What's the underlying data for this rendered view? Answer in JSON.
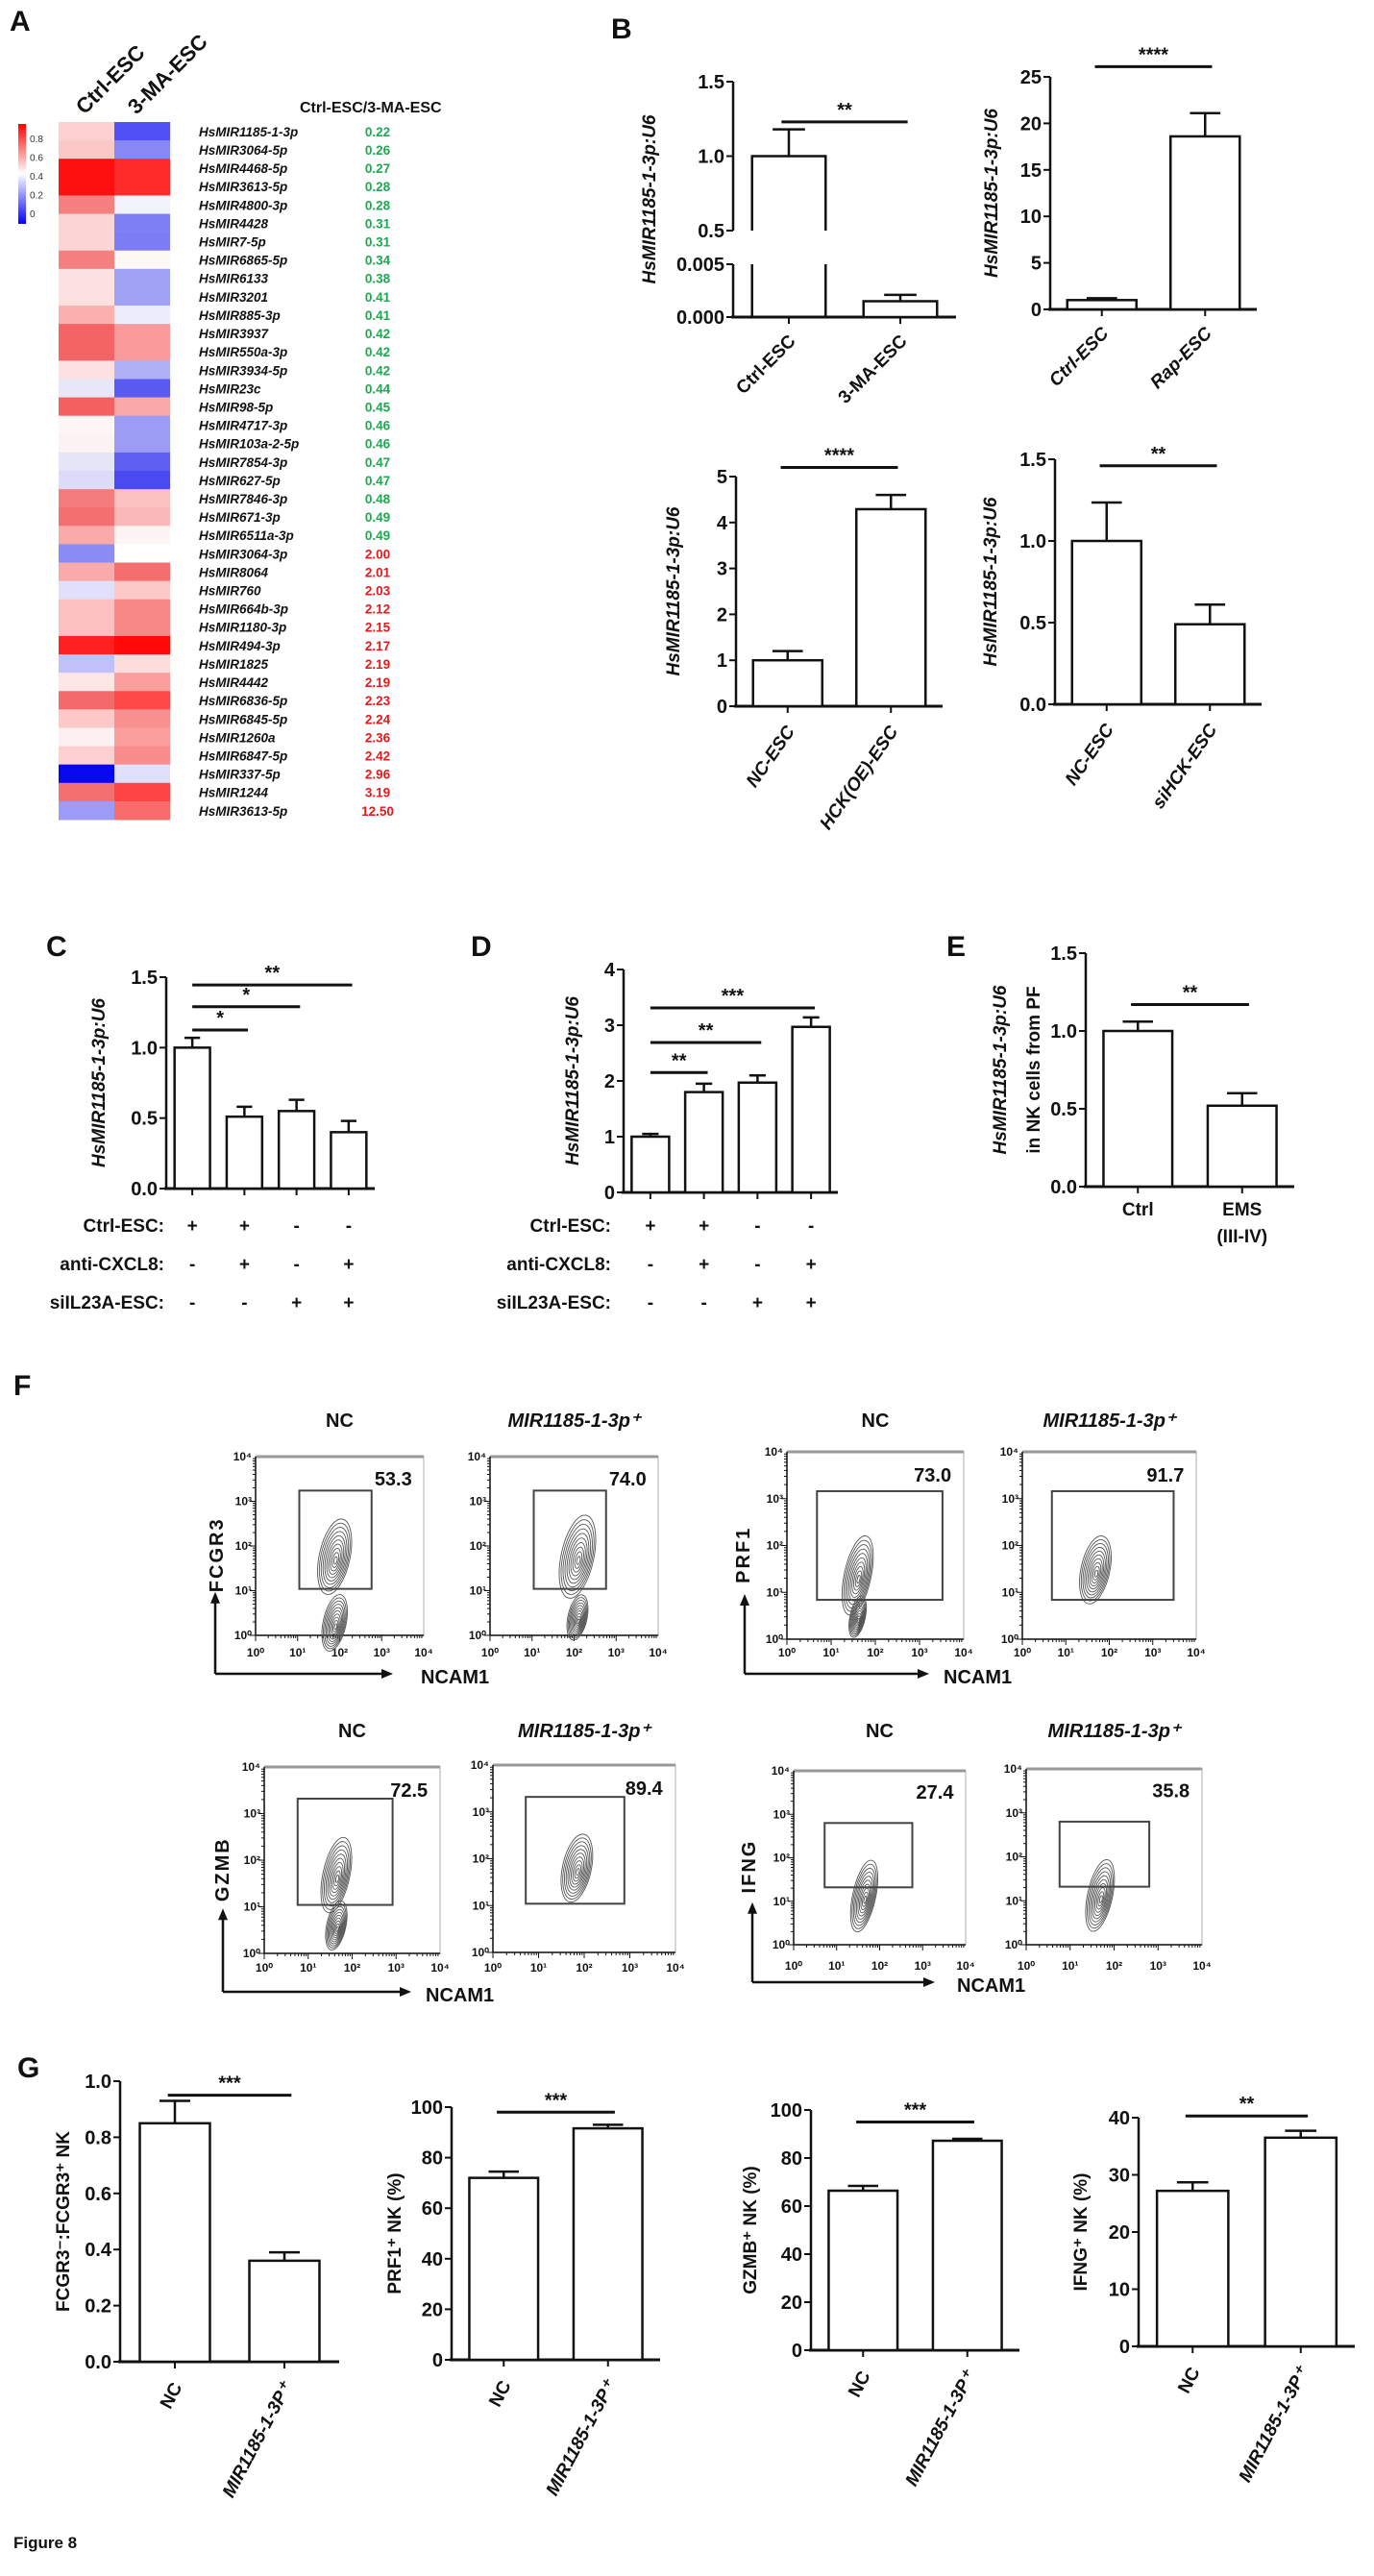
{
  "figure_label": "Figure 8",
  "panel_labels": {
    "A": "A",
    "B": "B",
    "C": "C",
    "D": "D",
    "E": "E",
    "F": "F",
    "G": "G"
  },
  "colors": {
    "down": "#1ea84f",
    "up": "#e41a1c",
    "bar_fill": "#ffffff",
    "line": "#111111",
    "gate": "#444444",
    "contour": "#555555"
  },
  "heatmap": {
    "columns": [
      "Ctrl-ESC",
      "3-MA-ESC"
    ],
    "ratio_header": "Ctrl-ESC/3-MA-ESC",
    "colorbar_ticks": [
      "0.8",
      "0.6",
      "0.4",
      "0.2",
      "0"
    ],
    "rows": [
      {
        "name": "HsMIR1185-1-3p",
        "ratio": "0.22",
        "dir": "down",
        "colors": [
          "#fcd0d0",
          "#5050f5"
        ]
      },
      {
        "name": "HsMIR3064-5p",
        "ratio": "0.26",
        "dir": "down",
        "colors": [
          "#fbc8c8",
          "#8888f5"
        ]
      },
      {
        "name": "HsMIR4468-5p",
        "ratio": "0.27",
        "dir": "down",
        "colors": [
          "#ff1010",
          "#ff2a2a"
        ]
      },
      {
        "name": "HsMIR3613-5p",
        "ratio": "0.28",
        "dir": "down",
        "colors": [
          "#ff1010",
          "#ff2a2a"
        ]
      },
      {
        "name": "HsMIR4800-3p",
        "ratio": "0.28",
        "dir": "down",
        "colors": [
          "#f48080",
          "#f2f2fa"
        ]
      },
      {
        "name": "HsMIR4428",
        "ratio": "0.31",
        "dir": "down",
        "colors": [
          "#fcd6d6",
          "#8080f5"
        ]
      },
      {
        "name": "HsMIR7-5p",
        "ratio": "0.31",
        "dir": "down",
        "colors": [
          "#fcd6d6",
          "#7c7cf5"
        ]
      },
      {
        "name": "HsMIR6865-5p",
        "ratio": "0.34",
        "dir": "down",
        "colors": [
          "#f48080",
          "#fdf8f3"
        ]
      },
      {
        "name": "HsMIR6133",
        "ratio": "0.38",
        "dir": "down",
        "colors": [
          "#fde0e0",
          "#a0a0f5"
        ]
      },
      {
        "name": "HsMIR3201",
        "ratio": "0.41",
        "dir": "down",
        "colors": [
          "#fde0e0",
          "#a0a0f5"
        ]
      },
      {
        "name": "HsMIR885-3p",
        "ratio": "0.41",
        "dir": "down",
        "colors": [
          "#fbb0b0",
          "#ececfa"
        ]
      },
      {
        "name": "HsMIR3937",
        "ratio": "0.42",
        "dir": "down",
        "colors": [
          "#f46464",
          "#fa9a9a"
        ]
      },
      {
        "name": "HsMIR550a-3p",
        "ratio": "0.42",
        "dir": "down",
        "colors": [
          "#f46464",
          "#fa9a9a"
        ]
      },
      {
        "name": "HsMIR3934-5p",
        "ratio": "0.42",
        "dir": "down",
        "colors": [
          "#fde0e0",
          "#b0b0f5"
        ]
      },
      {
        "name": "HsMIR23c",
        "ratio": "0.44",
        "dir": "down",
        "colors": [
          "#e6e8fa",
          "#5a5af0"
        ]
      },
      {
        "name": "HsMIR98-5p",
        "ratio": "0.45",
        "dir": "down",
        "colors": [
          "#f46060",
          "#fba8a8"
        ]
      },
      {
        "name": "HsMIR4717-3p",
        "ratio": "0.46",
        "dir": "down",
        "colors": [
          "#fdf6f4",
          "#9c9cf5"
        ]
      },
      {
        "name": "HsMIR103a-2-5p",
        "ratio": "0.46",
        "dir": "down",
        "colors": [
          "#fdf2f2",
          "#9c9cf5"
        ]
      },
      {
        "name": "HsMIR7854-3p",
        "ratio": "0.47",
        "dir": "down",
        "colors": [
          "#e4e6f8",
          "#5e5ef0"
        ]
      },
      {
        "name": "HsMIR627-5p",
        "ratio": "0.47",
        "dir": "down",
        "colors": [
          "#dcdcf8",
          "#4a4af0"
        ]
      },
      {
        "name": "HsMIR7846-3p",
        "ratio": "0.48",
        "dir": "down",
        "colors": [
          "#f47c7c",
          "#fbc0c0"
        ]
      },
      {
        "name": "HsMIR671-3p",
        "ratio": "0.49",
        "dir": "down",
        "colors": [
          "#f47070",
          "#fbb8b8"
        ]
      },
      {
        "name": "HsMIR6511a-3p",
        "ratio": "0.49",
        "dir": "down",
        "colors": [
          "#fbaaaa",
          "#fdf4f4"
        ]
      },
      {
        "name": "HsMIR3064-3p",
        "ratio": "2.00",
        "dir": "up",
        "colors": [
          "#8c8cf5",
          "#ffffff"
        ]
      },
      {
        "name": "HsMIR8064",
        "ratio": "2.01",
        "dir": "up",
        "colors": [
          "#fbaaaa",
          "#f46e6e"
        ]
      },
      {
        "name": "HsMIR760",
        "ratio": "2.03",
        "dir": "up",
        "colors": [
          "#e0e0fa",
          "#fcc8c8"
        ]
      },
      {
        "name": "HsMIR664b-3p",
        "ratio": "2.12",
        "dir": "up",
        "colors": [
          "#fcc0c0",
          "#f88888"
        ]
      },
      {
        "name": "HsMIR1180-3p",
        "ratio": "2.15",
        "dir": "up",
        "colors": [
          "#fcc0c0",
          "#f88888"
        ]
      },
      {
        "name": "HsMIR494-3p",
        "ratio": "2.17",
        "dir": "up",
        "colors": [
          "#ff2020",
          "#ff0808"
        ]
      },
      {
        "name": "HsMIR1825",
        "ratio": "2.19",
        "dir": "up",
        "colors": [
          "#c0c0fa",
          "#fddcdc"
        ]
      },
      {
        "name": "HsMIR4442",
        "ratio": "2.19",
        "dir": "up",
        "colors": [
          "#fde6e6",
          "#fa9e9e"
        ]
      },
      {
        "name": "HsMIR6836-5p",
        "ratio": "2.23",
        "dir": "up",
        "colors": [
          "#f46a6a",
          "#ff4848"
        ]
      },
      {
        "name": "HsMIR6845-5p",
        "ratio": "2.24",
        "dir": "up",
        "colors": [
          "#fcc8c8",
          "#f89090"
        ]
      },
      {
        "name": "HsMIR1260a",
        "ratio": "2.36",
        "dir": "up",
        "colors": [
          "#fdf0f0",
          "#fa9e9e"
        ]
      },
      {
        "name": "HsMIR6847-5p",
        "ratio": "2.42",
        "dir": "up",
        "colors": [
          "#fcd0d0",
          "#f88c8c"
        ]
      },
      {
        "name": "HsMIR337-5p",
        "ratio": "2.96",
        "dir": "up",
        "colors": [
          "#0808f0",
          "#e0e0fa"
        ]
      },
      {
        "name": "HsMIR1244",
        "ratio": "3.19",
        "dir": "up",
        "colors": [
          "#f47070",
          "#ff4444"
        ]
      },
      {
        "name": "HsMIR3613-5p",
        "ratio": "12.50",
        "dir": "up",
        "colors": [
          "#9c9cf8",
          "#f86c6c"
        ]
      }
    ]
  },
  "chart_data": [
    {
      "id": "B1",
      "panel": "B",
      "type": "bar",
      "categories": [
        "Ctrl-ESC",
        "3-MA-ESC"
      ],
      "values": [
        1.0,
        0.0015
      ],
      "error_tops": [
        1.18,
        0.0021
      ],
      "ylabel": "HsMIR1185-1-3p:U6",
      "ylim": [
        0,
        1.5
      ],
      "axis_break": [
        0.005,
        0.5
      ],
      "yticks": [
        {
          "v": 0,
          "label": "0.000"
        },
        {
          "v": 0.005,
          "label": "0.005"
        },
        {
          "v": 0.5,
          "label": "0.5"
        },
        {
          "v": 1.0,
          "label": "1.0"
        },
        {
          "v": 1.5,
          "label": "1.5"
        }
      ],
      "significance": [
        {
          "from": 0,
          "to": 1,
          "label": "**",
          "level": 1.23
        }
      ]
    },
    {
      "id": "B2",
      "panel": "B",
      "type": "bar",
      "categories": [
        "Ctrl-ESC",
        "Rap-ESC"
      ],
      "values": [
        1.0,
        18.6
      ],
      "error_tops": [
        1.2,
        21.1
      ],
      "ylabel": "HsMIR1185-1-3p:U6",
      "ylim": [
        0,
        25
      ],
      "yticks": [
        {
          "v": 0,
          "label": "0"
        },
        {
          "v": 5,
          "label": "5"
        },
        {
          "v": 10,
          "label": "10"
        },
        {
          "v": 15,
          "label": "15"
        },
        {
          "v": 20,
          "label": "20"
        },
        {
          "v": 25,
          "label": "25"
        }
      ],
      "significance": [
        {
          "from": 0,
          "to": 1,
          "label": "****",
          "level": 26.1
        }
      ]
    },
    {
      "id": "B3",
      "panel": "B",
      "type": "bar",
      "categories": [
        "NC-ESC",
        "HCK(OE)-ESC"
      ],
      "values": [
        1.0,
        4.29
      ],
      "error_tops": [
        1.2,
        4.6
      ],
      "ylabel": "HsMIR1185-1-3p:U6",
      "ylim": [
        0,
        5
      ],
      "yticks": [
        {
          "v": 0,
          "label": "0"
        },
        {
          "v": 1,
          "label": "1"
        },
        {
          "v": 2,
          "label": "2"
        },
        {
          "v": 3,
          "label": "3"
        },
        {
          "v": 4,
          "label": "4"
        },
        {
          "v": 5,
          "label": "5"
        }
      ],
      "significance": [
        {
          "from": 0,
          "to": 1,
          "label": "****",
          "level": 5.2
        }
      ]
    },
    {
      "id": "B4",
      "panel": "B",
      "type": "bar",
      "categories": [
        "NC-ESC",
        "siHCK-ESC"
      ],
      "values": [
        1.0,
        0.49
      ],
      "error_tops": [
        1.235,
        0.61
      ],
      "ylabel": "HsMIR1185-1-3p:U6",
      "ylim": [
        0,
        1.5
      ],
      "yticks": [
        {
          "v": 0,
          "label": "0.0"
        },
        {
          "v": 0.5,
          "label": "0.5"
        },
        {
          "v": 1.0,
          "label": "1.0"
        },
        {
          "v": 1.5,
          "label": "1.5"
        }
      ],
      "significance": [
        {
          "from": 0,
          "to": 1,
          "label": "**",
          "level": 1.46
        }
      ]
    },
    {
      "id": "C",
      "panel": "C",
      "type": "bar",
      "categories": [
        "1",
        "2",
        "3",
        "4"
      ],
      "values": [
        1.0,
        0.51,
        0.55,
        0.4
      ],
      "error_tops": [
        1.07,
        0.58,
        0.63,
        0.48
      ],
      "ylabel": "HsMIR1185-1-3p:U6",
      "ylim": [
        0,
        1.5
      ],
      "yticks": [
        {
          "v": 0,
          "label": "0.0"
        },
        {
          "v": 0.5,
          "label": "0.5"
        },
        {
          "v": 1.0,
          "label": "1.0"
        },
        {
          "v": 1.5,
          "label": "1.5"
        }
      ],
      "significance": [
        {
          "from": 0,
          "to": 1,
          "label": "*",
          "level": 1.125
        },
        {
          "from": 0,
          "to": 2,
          "label": "*",
          "level": 1.29
        },
        {
          "from": 0,
          "to": 3,
          "label": "**",
          "level": 1.445
        }
      ],
      "conditions": [
        {
          "label": "Ctrl-ESC:",
          "signs": [
            "+",
            "+",
            "-",
            "-"
          ]
        },
        {
          "label": "anti-CXCL8:",
          "signs": [
            "-",
            "+",
            "-",
            "+"
          ]
        },
        {
          "label": "siIL23A-ESC:",
          "signs": [
            "-",
            "-",
            "+",
            "+"
          ]
        }
      ]
    },
    {
      "id": "D",
      "panel": "D",
      "type": "bar",
      "categories": [
        "1",
        "2",
        "3",
        "4"
      ],
      "values": [
        1.0,
        1.8,
        1.97,
        2.97
      ],
      "error_tops": [
        1.05,
        1.95,
        2.1,
        3.14
      ],
      "ylabel": "HsMIR1185-1-3p:U6",
      "ylim": [
        0,
        4
      ],
      "yticks": [
        {
          "v": 0,
          "label": "0"
        },
        {
          "v": 1,
          "label": "1"
        },
        {
          "v": 2,
          "label": "2"
        },
        {
          "v": 3,
          "label": "3"
        },
        {
          "v": 4,
          "label": "4"
        }
      ],
      "significance": [
        {
          "from": 0,
          "to": 1,
          "label": "**",
          "level": 2.15
        },
        {
          "from": 0,
          "to": 2,
          "label": "**",
          "level": 2.69
        },
        {
          "from": 0,
          "to": 3,
          "label": "***",
          "level": 3.31
        }
      ],
      "conditions": [
        {
          "label": "Ctrl-ESC:",
          "signs": [
            "+",
            "+",
            "-",
            "-"
          ]
        },
        {
          "label": "anti-CXCL8:",
          "signs": [
            "-",
            "+",
            "-",
            "+"
          ]
        },
        {
          "label": "siIL23A-ESC:",
          "signs": [
            "-",
            "-",
            "+",
            "+"
          ]
        }
      ]
    },
    {
      "id": "E",
      "panel": "E",
      "type": "bar",
      "categories": [
        "Ctrl",
        "EMS"
      ],
      "category_sublabels": [
        "",
        "(III-IV)"
      ],
      "values": [
        1.0,
        0.52
      ],
      "error_tops": [
        1.06,
        0.6
      ],
      "ylabel": "HsMIR1185-1-3p:U6",
      "ylabel2": "in NK cells from PF",
      "ylim": [
        0,
        1.5
      ],
      "yticks": [
        {
          "v": 0,
          "label": "0.0"
        },
        {
          "v": 0.5,
          "label": "0.5"
        },
        {
          "v": 1.0,
          "label": "1.0"
        },
        {
          "v": 1.5,
          "label": "1.5"
        }
      ],
      "significance": [
        {
          "from": 0,
          "to": 1,
          "label": "**",
          "level": 1.17
        }
      ]
    },
    {
      "id": "G1",
      "panel": "G",
      "type": "bar",
      "categories": [
        "NC",
        "MIR1185-1-3P⁺"
      ],
      "values": [
        0.85,
        0.36
      ],
      "error_tops": [
        0.93,
        0.39
      ],
      "ylabel": "FCGR3⁻:FCGR3⁺ NK",
      "ylim": [
        0,
        1.0
      ],
      "yticks": [
        {
          "v": 0,
          "label": "0.0"
        },
        {
          "v": 0.2,
          "label": "0.2"
        },
        {
          "v": 0.4,
          "label": "0.4"
        },
        {
          "v": 0.6,
          "label": "0.6"
        },
        {
          "v": 0.8,
          "label": "0.8"
        },
        {
          "v": 1.0,
          "label": "1.0"
        }
      ],
      "significance": [
        {
          "from": 0,
          "to": 1,
          "label": "***",
          "level": 0.95
        }
      ]
    },
    {
      "id": "G2",
      "panel": "G",
      "type": "bar",
      "categories": [
        "NC",
        "MIR1185-1-3P⁺"
      ],
      "values": [
        72,
        91.6
      ],
      "error_tops": [
        74.5,
        93
      ],
      "ylabel": "PRF1⁺ NK (%)",
      "ylim": [
        0,
        100
      ],
      "yticks": [
        {
          "v": 0,
          "label": "0"
        },
        {
          "v": 20,
          "label": "20"
        },
        {
          "v": 40,
          "label": "40"
        },
        {
          "v": 60,
          "label": "60"
        },
        {
          "v": 80,
          "label": "80"
        },
        {
          "v": 100,
          "label": "100"
        }
      ],
      "significance": [
        {
          "from": 0,
          "to": 1,
          "label": "***",
          "level": 98
        }
      ]
    },
    {
      "id": "G3",
      "panel": "G",
      "type": "bar",
      "categories": [
        "NC",
        "MIR1185-1-3P⁺"
      ],
      "values": [
        66.4,
        87.2
      ],
      "error_tops": [
        68.4,
        88
      ],
      "ylabel": "GZMB⁺ NK (%)",
      "ylim": [
        0,
        100
      ],
      "yticks": [
        {
          "v": 0,
          "label": "0"
        },
        {
          "v": 20,
          "label": "20"
        },
        {
          "v": 40,
          "label": "40"
        },
        {
          "v": 60,
          "label": "60"
        },
        {
          "v": 80,
          "label": "80"
        },
        {
          "v": 100,
          "label": "100"
        }
      ],
      "significance": [
        {
          "from": 0,
          "to": 1,
          "label": "***",
          "level": 95
        }
      ]
    },
    {
      "id": "G4",
      "panel": "G",
      "type": "bar",
      "categories": [
        "NC",
        "MIR1185-1-3P⁺"
      ],
      "values": [
        27.2,
        36.5
      ],
      "error_tops": [
        28.7,
        37.7
      ],
      "ylabel": "IFNG⁺ NK (%)",
      "ylim": [
        0,
        40
      ],
      "yticks": [
        {
          "v": 0,
          "label": "0"
        },
        {
          "v": 10,
          "label": "10"
        },
        {
          "v": 20,
          "label": "20"
        },
        {
          "v": 30,
          "label": "30"
        },
        {
          "v": 40,
          "label": "40"
        }
      ],
      "significance": [
        {
          "from": 0,
          "to": 1,
          "label": "**",
          "level": 40.3
        }
      ]
    }
  ],
  "flow_cytometry": {
    "x_label": "NCAM1",
    "tick_labels": [
      "10⁰",
      "10¹",
      "10²",
      "10³",
      "10⁴"
    ],
    "groups": [
      {
        "marker": "FCGR3",
        "plots": [
          {
            "title": "NC",
            "gate_pct": "53.3"
          },
          {
            "title": "MIR1185-1-3p⁺",
            "gate_pct": "74.0"
          }
        ]
      },
      {
        "marker": "PRF1",
        "plots": [
          {
            "title": "NC",
            "gate_pct": "73.0"
          },
          {
            "title": "MIR1185-1-3p⁺",
            "gate_pct": "91.7"
          }
        ]
      },
      {
        "marker": "GZMB",
        "plots": [
          {
            "title": "NC",
            "gate_pct": "72.5"
          },
          {
            "title": "MIR1185-1-3p⁺",
            "gate_pct": "89.4"
          }
        ]
      },
      {
        "marker": "IFNG",
        "plots": [
          {
            "title": "NC",
            "gate_pct": "27.4"
          },
          {
            "title": "MIR1185-1-3p⁺",
            "gate_pct": "35.8"
          }
        ]
      }
    ]
  }
}
